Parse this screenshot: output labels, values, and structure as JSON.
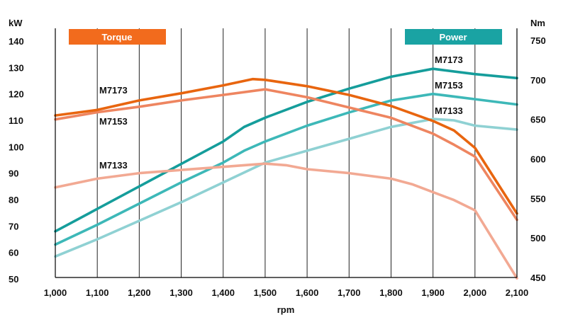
{
  "chart_data": {
    "type": "line",
    "title": "",
    "xlabel": "rpm",
    "ylabel_left": "kW",
    "ylabel_right": "Nm",
    "x_ticks": [
      1000,
      1100,
      1200,
      1300,
      1400,
      1500,
      1600,
      1700,
      1800,
      1900,
      2000,
      2100
    ],
    "x_tick_labels": [
      "1,000",
      "1,100",
      "1,200",
      "1,300",
      "1,400",
      "1,500",
      "1,600",
      "1,700",
      "1,800",
      "1,900",
      "2,000",
      "2,100"
    ],
    "xlim": [
      1000,
      2100
    ],
    "ylim_left": [
      50,
      140
    ],
    "y_ticks_left": [
      "50",
      "60",
      "70",
      "80",
      "90",
      "100",
      "110",
      "120",
      "130",
      "140"
    ],
    "ylim_right": [
      450,
      750
    ],
    "y_ticks_right": [
      "450",
      "500",
      "550",
      "600",
      "650",
      "700",
      "750"
    ],
    "grid": "vertical",
    "legend": [
      {
        "label": "Torque",
        "color": "#F26B1D",
        "position": "top-left"
      },
      {
        "label": "Power",
        "color": "#1AA3A3",
        "position": "top-right"
      }
    ],
    "series": [
      {
        "name": "M7173",
        "kind": "power",
        "axis": "left",
        "color": "#159D9B",
        "x": [
          1000,
          1100,
          1200,
          1300,
          1400,
          1450,
          1500,
          1600,
          1700,
          1800,
          1900,
          2000,
          2100
        ],
        "y": [
          68,
          76.5,
          85,
          93.5,
          102,
          107.5,
          111,
          117,
          122,
          126.5,
          129.5,
          127.5,
          126
        ]
      },
      {
        "name": "M7153",
        "kind": "power",
        "axis": "left",
        "color": "#3DB8B8",
        "x": [
          1000,
          1100,
          1200,
          1300,
          1400,
          1450,
          1500,
          1600,
          1700,
          1800,
          1900,
          2000,
          2100
        ],
        "y": [
          63,
          70.5,
          78.5,
          86.5,
          94,
          98.5,
          102,
          108,
          113,
          117.5,
          120,
          118,
          116
        ]
      },
      {
        "name": "M7133",
        "kind": "power",
        "axis": "left",
        "color": "#8FD1D3",
        "x": [
          1000,
          1100,
          1200,
          1300,
          1400,
          1500,
          1600,
          1700,
          1800,
          1900,
          1950,
          2000,
          2100
        ],
        "y": [
          58.5,
          65,
          72,
          79,
          86.5,
          94,
          98.5,
          103,
          107.5,
          110.5,
          110,
          108,
          106.5
        ]
      },
      {
        "name": "M7173",
        "kind": "torque",
        "axis": "right",
        "color": "#E8650F",
        "x": [
          1000,
          1100,
          1200,
          1300,
          1400,
          1470,
          1500,
          1600,
          1700,
          1800,
          1900,
          1950,
          2000,
          2100
        ],
        "y": [
          655,
          662,
          674,
          683,
          693,
          701,
          700,
          692,
          681,
          667,
          648,
          636,
          614,
          531
        ]
      },
      {
        "name": "M7153",
        "kind": "torque",
        "axis": "right",
        "color": "#EE8560",
        "x": [
          1000,
          1100,
          1200,
          1300,
          1400,
          1500,
          1600,
          1700,
          1800,
          1900,
          1950,
          2000,
          2100
        ],
        "y": [
          650,
          659,
          666,
          674,
          681,
          688,
          678,
          665,
          652,
          632,
          618,
          603,
          523
        ]
      },
      {
        "name": "M7133",
        "kind": "torque",
        "axis": "right",
        "color": "#F2A993",
        "x": [
          1000,
          1100,
          1200,
          1300,
          1400,
          1500,
          1550,
          1600,
          1700,
          1800,
          1850,
          1900,
          1950,
          2000,
          2100
        ],
        "y": [
          564,
          575,
          582,
          586,
          590,
          594,
          592,
          587,
          582,
          575,
          568,
          558,
          548,
          535,
          449
        ]
      }
    ],
    "series_labels": [
      {
        "text": "M7173",
        "series": 3
      },
      {
        "text": "M7153",
        "series": 4
      },
      {
        "text": "M7133",
        "series": 5
      },
      {
        "text": "M7173",
        "series": 0
      },
      {
        "text": "M7153",
        "series": 1
      },
      {
        "text": "M7133",
        "series": 2
      }
    ]
  }
}
